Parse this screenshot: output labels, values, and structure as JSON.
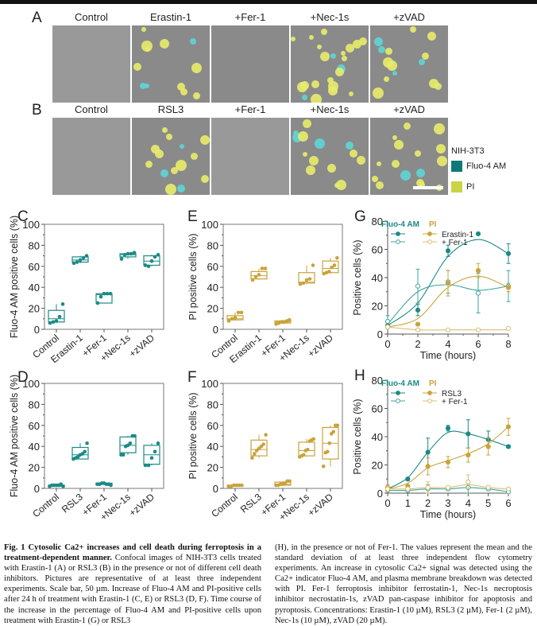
{
  "colors": {
    "fluo": "#1a8a86",
    "fluo_light": "#3fa5a2",
    "pi": "#c9a33a",
    "pi_light": "#d9bf72",
    "cyan": "#5ed5d5",
    "yellow": "#e8ec6a"
  },
  "panelA": {
    "letter": "A",
    "titles": [
      "Control",
      "Erastin-1",
      "+Fer-1",
      "+Nec-1s",
      "+zVAD"
    ]
  },
  "panelB": {
    "letter": "B",
    "titles": [
      "Control",
      "RSL3",
      "+Fer-1",
      "+Nec-1s",
      "+zVAD"
    ]
  },
  "micro_legend": {
    "title": "NIH-3T3",
    "items": [
      {
        "label": "Fluo-4 AM",
        "color": "#0e7a78"
      },
      {
        "label": "PI",
        "color": "#c8d446"
      }
    ]
  },
  "chart_data": [
    {
      "panel": "C",
      "type": "box",
      "title": "",
      "ylabel": "Fluo-4 AM positive cells (%)",
      "ylim": [
        0,
        100
      ],
      "yticks": [
        0,
        20,
        40,
        60,
        80,
        100
      ],
      "color": "#1a8a86",
      "categories": [
        "Control",
        "Erastin-1",
        "+Fer-1",
        "+Nec-1s",
        "+zVAD"
      ],
      "boxes": [
        {
          "q1": 7,
          "median": 10,
          "q3": 18,
          "min": 6,
          "max": 24
        },
        {
          "q1": 64,
          "median": 66,
          "q3": 69,
          "min": 63,
          "max": 70
        },
        {
          "q1": 25,
          "median": 33,
          "q3": 34,
          "min": 25,
          "max": 34
        },
        {
          "q1": 69,
          "median": 71,
          "q3": 72,
          "min": 67,
          "max": 73
        },
        {
          "q1": 61,
          "median": 65,
          "q3": 70,
          "min": 60,
          "max": 71
        }
      ],
      "points": [
        [
          6,
          7,
          8,
          12,
          24
        ],
        [
          63,
          64,
          66,
          68,
          70
        ],
        [
          25,
          31,
          34,
          34,
          34
        ],
        [
          67,
          71,
          72,
          72,
          73
        ],
        [
          61,
          60,
          65,
          69,
          71
        ]
      ]
    },
    {
      "panel": "E",
      "type": "box",
      "title": "",
      "ylabel": "PI positive cells (%)",
      "ylim": [
        0,
        100
      ],
      "yticks": [
        0,
        20,
        40,
        60,
        80,
        100
      ],
      "color": "#c9a33a",
      "categories": [
        "Control",
        "Erastin-1",
        "+Fer-1",
        "+Nec-1s",
        "+zVAD"
      ],
      "boxes": [
        {
          "q1": 9,
          "median": 10,
          "q3": 13,
          "min": 8,
          "max": 16
        },
        {
          "q1": 48,
          "median": 51,
          "q3": 55,
          "min": 47,
          "max": 58
        },
        {
          "q1": 6,
          "median": 7,
          "q3": 8,
          "min": 5,
          "max": 9
        },
        {
          "q1": 44,
          "median": 45,
          "q3": 54,
          "min": 43,
          "max": 61
        },
        {
          "q1": 54,
          "median": 58,
          "q3": 65,
          "min": 53,
          "max": 68
        }
      ],
      "points": [
        [
          8,
          10,
          11,
          16,
          16
        ],
        [
          47,
          50,
          52,
          58,
          58
        ],
        [
          5,
          6,
          7,
          7,
          8,
          9
        ],
        [
          43,
          44,
          47,
          48,
          61
        ],
        [
          53,
          54,
          55,
          59,
          61,
          68
        ]
      ]
    },
    {
      "panel": "D",
      "type": "box",
      "title": "",
      "ylabel": "Fluo-4 AM positive cells (%)",
      "ylim": [
        0,
        100
      ],
      "yticks": [
        0,
        20,
        40,
        60,
        80,
        100
      ],
      "color": "#1a8a86",
      "categories": [
        "Control",
        "RSL3",
        "+Fer-1",
        "+Nec-1s",
        "+zVAD"
      ],
      "boxes": [
        {
          "q1": 2,
          "median": 3,
          "q3": 3,
          "min": 2,
          "max": 4
        },
        {
          "q1": 28,
          "median": 32,
          "q3": 39,
          "min": 28,
          "max": 43
        },
        {
          "q1": 4,
          "median": 4,
          "q3": 5,
          "min": 3,
          "max": 5
        },
        {
          "q1": 34,
          "median": 41,
          "q3": 49,
          "min": 32,
          "max": 50
        },
        {
          "q1": 23,
          "median": 32,
          "q3": 41,
          "min": 22,
          "max": 43
        }
      ],
      "points": [
        [
          2,
          3,
          3,
          3,
          3,
          4,
          2
        ],
        [
          28,
          29,
          30,
          32,
          33,
          35,
          43
        ],
        [
          4,
          4,
          5,
          5,
          4,
          4,
          3
        ],
        [
          32,
          32,
          40,
          41,
          43,
          50,
          50
        ],
        [
          22,
          22,
          29,
          35,
          43
        ]
      ]
    },
    {
      "panel": "F",
      "type": "box",
      "title": "",
      "ylabel": "PI positive cells (%)",
      "ylim": [
        0,
        100
      ],
      "yticks": [
        0,
        20,
        40,
        60,
        80,
        100
      ],
      "color": "#c9a33a",
      "categories": [
        "Control",
        "RSL3",
        "+Fer-1",
        "+Nec-1s",
        "+zVAD"
      ],
      "boxes": [
        {
          "q1": 2,
          "median": 3,
          "q3": 3,
          "min": 2,
          "max": 3
        },
        {
          "q1": 31,
          "median": 37,
          "q3": 46,
          "min": 29,
          "max": 51
        },
        {
          "q1": 3,
          "median": 4,
          "q3": 6,
          "min": 3,
          "max": 7
        },
        {
          "q1": 31,
          "median": 36,
          "q3": 44,
          "min": 30,
          "max": 47
        },
        {
          "q1": 28,
          "median": 43,
          "q3": 58,
          "min": 21,
          "max": 60
        }
      ],
      "points": [
        [
          2,
          2,
          3,
          3,
          3,
          3
        ],
        [
          29,
          33,
          36,
          38,
          40,
          42,
          51
        ],
        [
          3,
          3,
          4,
          4,
          5,
          7,
          7
        ],
        [
          30,
          31,
          32,
          36,
          37,
          45,
          46,
          47
        ],
        [
          21,
          34,
          35,
          43,
          52,
          54,
          60,
          60
        ]
      ]
    },
    {
      "panel": "G",
      "type": "line",
      "title": "",
      "xlabel": "Time (hours)",
      "ylabel": "Positive cells (%)",
      "xlim": [
        0,
        8
      ],
      "ylim": [
        0,
        80
      ],
      "xticks": [
        0,
        2,
        4,
        6,
        8
      ],
      "yticks": [
        0,
        20,
        40,
        60,
        80
      ],
      "legend": {
        "headers": [
          "Fluo-4 AM",
          "PI"
        ],
        "labels": [
          "Erastin-1",
          "+ Fer-1"
        ],
        "position": "top-left"
      },
      "x": [
        0,
        2,
        4,
        6,
        8
      ],
      "series": [
        {
          "name": "Fluo-4 AM Erastin-1",
          "filled": true,
          "color": "#1a8a86",
          "values": [
            6,
            17,
            59,
            71,
            57
          ],
          "err": [
            2,
            4,
            4,
            0,
            7
          ],
          "fit": [
            6,
            22,
            55,
            67,
            57
          ]
        },
        {
          "name": "Fluo-4 AM + Fer-1",
          "filled": false,
          "color": "#3fa5a2",
          "values": [
            9,
            34,
            37,
            29,
            34
          ],
          "err": [
            4,
            12,
            8,
            14,
            11
          ],
          "fit": [
            7,
            30,
            35,
            31,
            34
          ]
        },
        {
          "name": "PI Erastin-1",
          "filled": true,
          "color": "#c9a33a",
          "values": [
            5,
            7,
            36,
            45,
            33
          ],
          "err": [
            1,
            1,
            9,
            5,
            3
          ],
          "fit": [
            5,
            11,
            33,
            41,
            33
          ]
        },
        {
          "name": "PI + Fer-1",
          "filled": false,
          "color": "#d9bf72",
          "values": [
            5,
            3,
            3,
            3,
            4
          ],
          "err": [
            1,
            1,
            1,
            1,
            1
          ],
          "fit": [
            5,
            3,
            3,
            3,
            3
          ]
        }
      ]
    },
    {
      "panel": "H",
      "type": "line",
      "title": "",
      "xlabel": "Time (hours)",
      "ylabel": "Positive cells (%)",
      "xlim": [
        0,
        6
      ],
      "ylim": [
        0,
        80
      ],
      "xticks": [
        0,
        1,
        2,
        3,
        4,
        5,
        6
      ],
      "yticks": [
        0,
        20,
        40,
        60,
        80
      ],
      "legend": {
        "headers": [
          "Fluo-4 AM",
          "PI"
        ],
        "labels": [
          "RSL3",
          "+ Fer-1"
        ],
        "position": "top-left"
      },
      "x": [
        0,
        1,
        2,
        3,
        4,
        5,
        6
      ],
      "series": [
        {
          "name": "Fluo-4 AM RSL3",
          "filled": true,
          "color": "#1a8a86",
          "values": [
            4,
            10,
            29,
            46,
            42,
            38,
            33
          ],
          "err": [
            1,
            1,
            10,
            2,
            10,
            6,
            1
          ],
          "fit": [
            3,
            11,
            29,
            43,
            42,
            38,
            33
          ]
        },
        {
          "name": "Fluo-4 AM + Fer-1",
          "filled": false,
          "color": "#3fa5a2",
          "values": [
            2,
            2,
            3,
            3,
            4,
            3,
            1
          ],
          "err": [
            1,
            1,
            3,
            1,
            5,
            1,
            1
          ],
          "fit": [
            2,
            2,
            3,
            3,
            4,
            3,
            1
          ]
        },
        {
          "name": "PI RSL3",
          "filled": true,
          "color": "#c9a33a",
          "values": [
            4,
            5,
            19,
            22,
            27,
            33,
            47
          ],
          "err": [
            2,
            1,
            6,
            4,
            5,
            6,
            6
          ],
          "fit": [
            3,
            7,
            18,
            23,
            28,
            35,
            47
          ]
        },
        {
          "name": "PI + Fer-1",
          "filled": false,
          "color": "#d9bf72",
          "values": [
            3,
            3,
            4,
            4,
            8,
            4,
            3
          ],
          "err": [
            2,
            1,
            4,
            1,
            5,
            1,
            1
          ],
          "fit": [
            3,
            3,
            4,
            4,
            6,
            4,
            3
          ]
        }
      ]
    }
  ],
  "caption_left": {
    "bold": "Fig. 1  Cytosolic Ca2+ increases and cell death during ferroptosis in a treatment-dependent manner.",
    "text": " Confocal images of NIH-3T3 cells treated with Erastin-1 (A) or RSL3 (B) in the presence or not of different cell death inhibitors. Pictures are representative of at least three independent experiments. Scale bar, 50 µm. Increase of Fluo-4 AM and PI-positive cells after 24 h of treatment with Erastin-1 (C, E) or RSL3 (D, F). Time course of the increase in the percentage of Fluo-4 AM and PI-positive cells upon treatment with Erastin-1 (G) or RSL3"
  },
  "caption_right": {
    "text": "(H), in the presence or not of Fer-1. The values represent the mean and the standard deviation of at least three independent flow cytometry experiments. An increase in cytosolic Ca2+ signal was detected using the Ca2+ indicator Fluo-4 AM, and plasma membrane breakdown was detected with PI. Fer-1 ferroptosis inhibitor ferrostatin-1, Nec-1s necroptosis inhibitor necrostatin-1s, zVAD pan-caspase inhibitor for apoptosis and pyroptosis. Concentrations: Erastin-1 (10 µM), RSL3 (2 µM), Fer-1 (2 µM), Nec-1s (10 µM), zVAD (20 µM)."
  }
}
